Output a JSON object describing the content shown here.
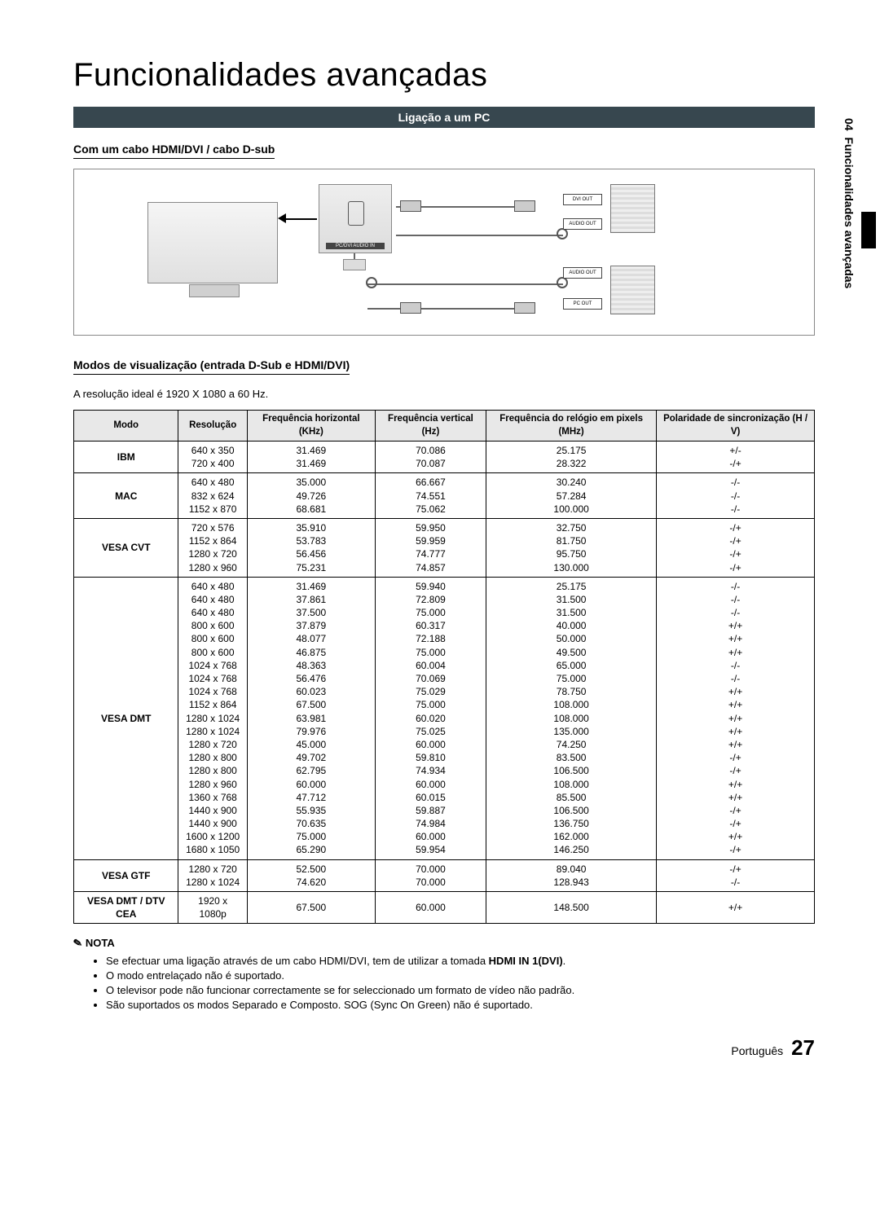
{
  "sidebar": {
    "chapter_num": "04",
    "chapter_title": "Funcionalidades avançadas"
  },
  "title": "Funcionalidades avançadas",
  "section_bar": "Ligação a um PC",
  "sub1": "Com um cabo HDMI/DVI / cabo D-sub",
  "diagram": {
    "port_label": "1(DVI)",
    "panel_caption": "PC/DVI\nAUDIO IN",
    "pc_dvi_out": "DVI OUT",
    "pc_audio_out": "AUDIO OUT",
    "pc_pc_out": "PC OUT"
  },
  "sub2": "Modos de visualização (entrada D-Sub e HDMI/DVI)",
  "resolution_line": "A resolução ideal é 1920 X 1080 a 60 Hz.",
  "table": {
    "headers": [
      "Modo",
      "Resolução",
      "Frequência horizontal (KHz)",
      "Frequência vertical (Hz)",
      "Frequência do relógio em pixels (MHz)",
      "Polaridade de sincronização (H / V)"
    ],
    "groups": [
      {
        "mode": "IBM",
        "rows": [
          [
            "640 x 350",
            "31.469",
            "70.086",
            "25.175",
            "+/-"
          ],
          [
            "720 x 400",
            "31.469",
            "70.087",
            "28.322",
            "-/+"
          ]
        ]
      },
      {
        "mode": "MAC",
        "rows": [
          [
            "640 x 480",
            "35.000",
            "66.667",
            "30.240",
            "-/-"
          ],
          [
            "832 x 624",
            "49.726",
            "74.551",
            "57.284",
            "-/-"
          ],
          [
            "1152 x 870",
            "68.681",
            "75.062",
            "100.000",
            "-/-"
          ]
        ]
      },
      {
        "mode": "VESA CVT",
        "rows": [
          [
            "720 x 576",
            "35.910",
            "59.950",
            "32.750",
            "-/+"
          ],
          [
            "1152 x 864",
            "53.783",
            "59.959",
            "81.750",
            "-/+"
          ],
          [
            "1280 x 720",
            "56.456",
            "74.777",
            "95.750",
            "-/+"
          ],
          [
            "1280 x 960",
            "75.231",
            "74.857",
            "130.000",
            "-/+"
          ]
        ]
      },
      {
        "mode": "VESA DMT",
        "rows": [
          [
            "640 x 480",
            "31.469",
            "59.940",
            "25.175",
            "-/-"
          ],
          [
            "640 x 480",
            "37.861",
            "72.809",
            "31.500",
            "-/-"
          ],
          [
            "640 x 480",
            "37.500",
            "75.000",
            "31.500",
            "-/-"
          ],
          [
            "800 x 600",
            "37.879",
            "60.317",
            "40.000",
            "+/+"
          ],
          [
            "800 x 600",
            "48.077",
            "72.188",
            "50.000",
            "+/+"
          ],
          [
            "800 x 600",
            "46.875",
            "75.000",
            "49.500",
            "+/+"
          ],
          [
            "1024 x 768",
            "48.363",
            "60.004",
            "65.000",
            "-/-"
          ],
          [
            "1024 x 768",
            "56.476",
            "70.069",
            "75.000",
            "-/-"
          ],
          [
            "1024 x 768",
            "60.023",
            "75.029",
            "78.750",
            "+/+"
          ],
          [
            "1152 x 864",
            "67.500",
            "75.000",
            "108.000",
            "+/+"
          ],
          [
            "1280 x 1024",
            "63.981",
            "60.020",
            "108.000",
            "+/+"
          ],
          [
            "1280 x 1024",
            "79.976",
            "75.025",
            "135.000",
            "+/+"
          ],
          [
            "1280 x 720",
            "45.000",
            "60.000",
            "74.250",
            "+/+"
          ],
          [
            "1280 x 800",
            "49.702",
            "59.810",
            "83.500",
            "-/+"
          ],
          [
            "1280 x 800",
            "62.795",
            "74.934",
            "106.500",
            "-/+"
          ],
          [
            "1280 x 960",
            "60.000",
            "60.000",
            "108.000",
            "+/+"
          ],
          [
            "1360 x 768",
            "47.712",
            "60.015",
            "85.500",
            "+/+"
          ],
          [
            "1440 x 900",
            "55.935",
            "59.887",
            "106.500",
            "-/+"
          ],
          [
            "1440 x 900",
            "70.635",
            "74.984",
            "136.750",
            "-/+"
          ],
          [
            "1600 x 1200",
            "75.000",
            "60.000",
            "162.000",
            "+/+"
          ],
          [
            "1680 x 1050",
            "65.290",
            "59.954",
            "146.250",
            "-/+"
          ]
        ]
      },
      {
        "mode": "VESA GTF",
        "rows": [
          [
            "1280 x 720",
            "52.500",
            "70.000",
            "89.040",
            "-/+"
          ],
          [
            "1280 x 1024",
            "74.620",
            "70.000",
            "128.943",
            "-/-"
          ]
        ]
      },
      {
        "mode": "VESA DMT / DTV CEA",
        "rows": [
          [
            "1920 x 1080p",
            "67.500",
            "60.000",
            "148.500",
            "+/+"
          ]
        ]
      }
    ]
  },
  "nota": {
    "label": "NOTA",
    "items": [
      {
        "pre": "Se efectuar uma ligação através de um cabo HDMI/DVI, tem de utilizar a tomada ",
        "bold": "HDMI IN 1(DVI)",
        "post": "."
      },
      {
        "pre": "O modo entrelaçado não é suportado.",
        "bold": "",
        "post": ""
      },
      {
        "pre": "O televisor pode não funcionar correctamente se for seleccionado um formato de vídeo não padrão.",
        "bold": "",
        "post": ""
      },
      {
        "pre": "São suportados os modos Separado e Composto. SOG (Sync On Green) não é suportado.",
        "bold": "",
        "post": ""
      }
    ]
  },
  "footer": {
    "lang": "Português",
    "page": "27"
  }
}
